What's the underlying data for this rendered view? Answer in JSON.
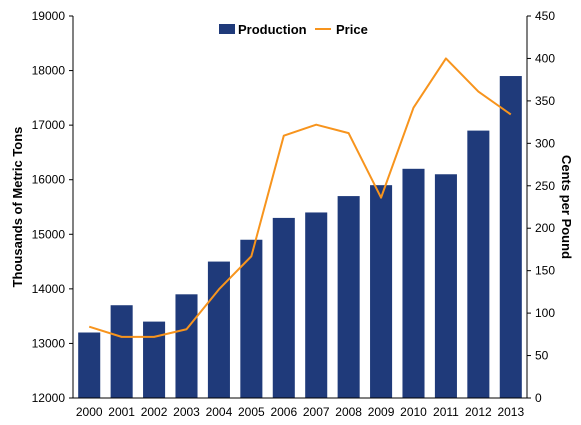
{
  "chart_data": {
    "type": "bar+line",
    "categories": [
      "2000",
      "2001",
      "2002",
      "2003",
      "2004",
      "2005",
      "2006",
      "2007",
      "2008",
      "2009",
      "2010",
      "2011",
      "2012",
      "2013"
    ],
    "series": [
      {
        "name": "Production",
        "type": "bar",
        "axis": "left",
        "color": "#1F3A7A",
        "values": [
          13200,
          13700,
          13400,
          13900,
          14500,
          14900,
          15300,
          15400,
          15700,
          15900,
          16200,
          16100,
          16900,
          17900
        ]
      },
      {
        "name": "Price",
        "type": "line",
        "axis": "right",
        "color": "#F7941D",
        "values": [
          84,
          72,
          72,
          81,
          128,
          167,
          309,
          322,
          312,
          236,
          342,
          400,
          361,
          334
        ]
      }
    ],
    "ylabel_left": "Thousands of Metric Tons",
    "ylabel_right": "Cents per Pound",
    "ylim_left": [
      12000,
      19000
    ],
    "ylim_right": [
      0,
      450
    ],
    "yticks_left": [
      "12000",
      "13000",
      "14000",
      "15000",
      "16000",
      "17000",
      "18000",
      "19000"
    ],
    "yticks_right": [
      "0",
      "50",
      "100",
      "150",
      "200",
      "250",
      "300",
      "350",
      "400",
      "450"
    ],
    "legend_position": "top-center",
    "grid": false
  }
}
